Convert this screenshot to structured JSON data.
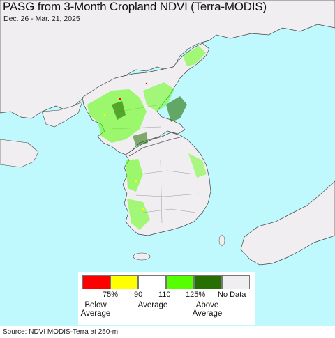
{
  "title": "PASG from 3-Month Cropland NDVI (Terra-MODIS)",
  "subtitle": "Dec. 26 - Mar. 21, 2025",
  "source": "Source: NDVI MODIS-Terra at 250-m",
  "colors": {
    "water": "#bff9fe",
    "land": "#f0eef0",
    "below_strong": "#ff0000",
    "below": "#ffff00",
    "average": "#ffffff",
    "above": "#55ff00",
    "above_strong": "#257000",
    "no_data": "#f0eef0"
  },
  "legend": {
    "swatches": [
      {
        "name": "below-75",
        "color": "#ff0000"
      },
      {
        "name": "75-90",
        "color": "#ffff00"
      },
      {
        "name": "90-110",
        "color": "#ffffff"
      },
      {
        "name": "110-125",
        "color": "#55ff00"
      },
      {
        "name": "above-125",
        "color": "#257000"
      },
      {
        "name": "no-data",
        "color": "#f0eef0"
      }
    ],
    "ticks": [
      "75%",
      "90",
      "110",
      "125%"
    ],
    "no_data_label": "No Data",
    "below_label_1": "Below",
    "below_label_2": "Average",
    "average_label": "Average",
    "above_label_1": "Above",
    "above_label_2": "Average"
  }
}
